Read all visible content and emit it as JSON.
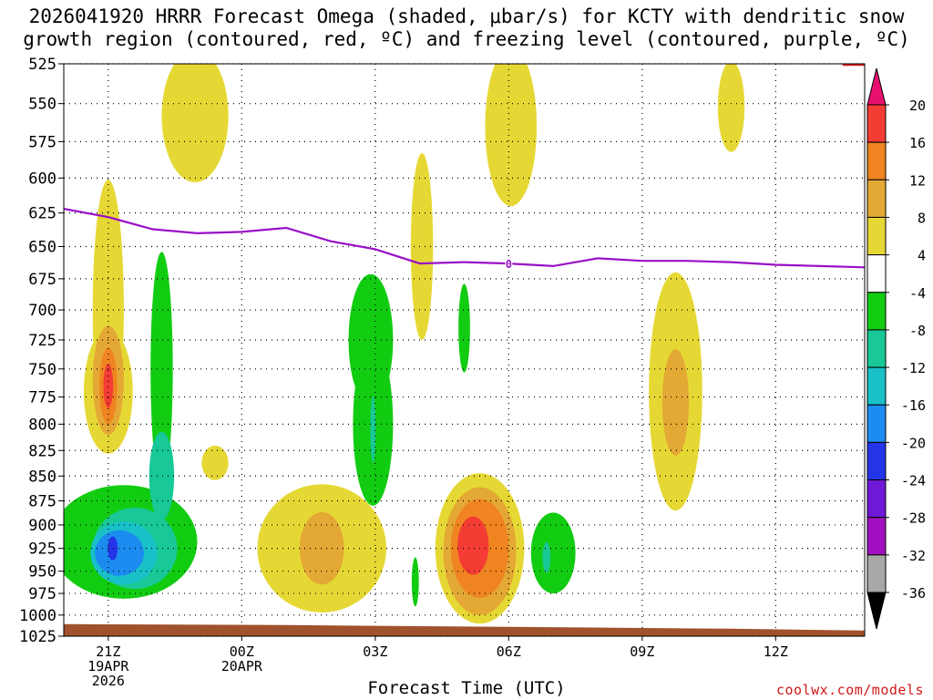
{
  "chart_data": {
    "type": "heatmap",
    "title": "2026041920 HRRR Forecast Omega (shaded, μbar/s) for KCTY with dendritic snow growth region (contoured, red, ºC) and freezing level (contoured, purple, ºC)",
    "xlabel": "Forecast Time (UTC)",
    "ylabel": "",
    "y_axis": {
      "type": "pressure (mb)",
      "ticks": [
        525,
        550,
        575,
        600,
        625,
        650,
        675,
        700,
        725,
        750,
        775,
        800,
        825,
        850,
        875,
        900,
        925,
        950,
        975,
        1000,
        1025
      ],
      "ylim": [
        525,
        1025
      ]
    },
    "x_axis": {
      "range_hours": [
        -1.0,
        17.0
      ],
      "ticks": [
        {
          "hour": 0,
          "lines": [
            "21Z",
            "19APR",
            "2026"
          ]
        },
        {
          "hour": 3,
          "lines": [
            "00Z",
            "20APR"
          ]
        },
        {
          "hour": 6,
          "lines": [
            "03Z"
          ]
        },
        {
          "hour": 9,
          "lines": [
            "06Z"
          ]
        },
        {
          "hour": 12,
          "lines": [
            "09Z"
          ]
        },
        {
          "hour": 15,
          "lines": [
            "12Z"
          ]
        }
      ]
    },
    "colorbar": {
      "labels": [
        20,
        16,
        12,
        8,
        4,
        -4,
        -8,
        -12,
        -16,
        -20,
        -24,
        -28,
        -32,
        -36
      ],
      "bins": [
        {
          "min": 20,
          "max": null,
          "color": "#e8106e"
        },
        {
          "min": 16,
          "max": 20,
          "color": "#f43c34"
        },
        {
          "min": 12,
          "max": 16,
          "color": "#f08420"
        },
        {
          "min": 8,
          "max": 12,
          "color": "#e4a834"
        },
        {
          "min": 4,
          "max": 8,
          "color": "#e6d834"
        },
        {
          "min": -4,
          "max": 4,
          "color": "#ffffff"
        },
        {
          "min": -8,
          "max": -4,
          "color": "#12cc12"
        },
        {
          "min": -12,
          "max": -8,
          "color": "#18c896"
        },
        {
          "min": -16,
          "max": -12,
          "color": "#18c0c8"
        },
        {
          "min": -20,
          "max": -16,
          "color": "#1c8cf0"
        },
        {
          "min": -24,
          "max": -20,
          "color": "#2434e8"
        },
        {
          "min": -28,
          "max": -24,
          "color": "#7018d8"
        },
        {
          "min": -32,
          "max": -28,
          "color": "#a010c0"
        },
        {
          "min": -36,
          "max": -32,
          "color": "#a8a8a8"
        },
        {
          "min": null,
          "max": -36,
          "color": "#000000"
        }
      ]
    },
    "freezing_level": {
      "label": "0",
      "color": "#9a10c8",
      "points": [
        [
          -1.0,
          622
        ],
        [
          0.0,
          628
        ],
        [
          1.0,
          637
        ],
        [
          2.0,
          640
        ],
        [
          3.0,
          639
        ],
        [
          4.0,
          636
        ],
        [
          5.0,
          646
        ],
        [
          6.0,
          652
        ],
        [
          7.0,
          663
        ],
        [
          8.0,
          662
        ],
        [
          9.0,
          663
        ],
        [
          10.0,
          665
        ],
        [
          11.0,
          659
        ],
        [
          12.0,
          661
        ],
        [
          13.0,
          661
        ],
        [
          14.0,
          662
        ],
        [
          15.0,
          664
        ],
        [
          16.0,
          665
        ],
        [
          17.0,
          666
        ]
      ]
    },
    "snow_growth_region": {
      "color": "#e01818",
      "points": [
        [
          16.5,
          524
        ],
        [
          17.0,
          524
        ]
      ]
    },
    "terrain": {
      "color": "#a0522d",
      "surface_pressure_mb": 1015
    },
    "omega_features": [
      {
        "value": 4,
        "center": [
          0.0,
          700
        ],
        "rx": 0.35,
        "ry": 115
      },
      {
        "value": 4,
        "center": [
          0.0,
          770
        ],
        "rx": 0.55,
        "ry": 58
      },
      {
        "value": 8,
        "center": [
          0.0,
          760
        ],
        "rx": 0.35,
        "ry": 50
      },
      {
        "value": 12,
        "center": [
          0.0,
          765
        ],
        "rx": 0.2,
        "ry": 35
      },
      {
        "value": 16,
        "center": [
          0.0,
          765
        ],
        "rx": 0.11,
        "ry": 20
      },
      {
        "value": 4,
        "center": [
          1.95,
          558
        ],
        "rx": 0.75,
        "ry": 45
      },
      {
        "value": 4,
        "center": [
          2.4,
          837
        ],
        "rx": 0.3,
        "ry": 17
      },
      {
        "value": -4,
        "center": [
          1.0,
          920
        ],
        "rx": 0.3,
        "ry": 42
      },
      {
        "value": -4,
        "center": [
          0.35,
          918
        ],
        "rx": 1.65,
        "ry": 63
      },
      {
        "value": -4,
        "center": [
          1.2,
          750
        ],
        "rx": 0.25,
        "ry": 110
      },
      {
        "value": -8,
        "center": [
          0.6,
          925
        ],
        "rx": 0.95,
        "ry": 45
      },
      {
        "value": -8,
        "center": [
          1.2,
          850
        ],
        "rx": 0.28,
        "ry": 45
      },
      {
        "value": -12,
        "center": [
          0.35,
          930
        ],
        "rx": 0.75,
        "ry": 35
      },
      {
        "value": -16,
        "center": [
          0.25,
          930
        ],
        "rx": 0.55,
        "ry": 25
      },
      {
        "value": -20,
        "center": [
          0.1,
          925
        ],
        "rx": 0.11,
        "ry": 13
      },
      {
        "value": -4,
        "center": [
          5.9,
          725
        ],
        "rx": 0.5,
        "ry": 58
      },
      {
        "value": -4,
        "center": [
          5.95,
          800
        ],
        "rx": 0.45,
        "ry": 80
      },
      {
        "value": -8,
        "center": [
          5.95,
          805
        ],
        "rx": 0.06,
        "ry": 32
      },
      {
        "value": 4,
        "center": [
          4.8,
          925
        ],
        "rx": 1.45,
        "ry": 72
      },
      {
        "value": 8,
        "center": [
          4.8,
          925
        ],
        "rx": 0.5,
        "ry": 40
      },
      {
        "value": 4,
        "center": [
          7.05,
          650
        ],
        "rx": 0.25,
        "ry": 75
      },
      {
        "value": -4,
        "center": [
          6.9,
          962
        ],
        "rx": 0.08,
        "ry": 28
      },
      {
        "value": 4,
        "center": [
          8.35,
          925
        ],
        "rx": 1.0,
        "ry": 85
      },
      {
        "value": 8,
        "center": [
          8.35,
          928
        ],
        "rx": 0.82,
        "ry": 72
      },
      {
        "value": 12,
        "center": [
          8.35,
          925
        ],
        "rx": 0.65,
        "ry": 55
      },
      {
        "value": 16,
        "center": [
          8.2,
          922
        ],
        "rx": 0.35,
        "ry": 32
      },
      {
        "value": -4,
        "center": [
          8.0,
          715
        ],
        "rx": 0.13,
        "ry": 38
      },
      {
        "value": 4,
        "center": [
          9.05,
          565
        ],
        "rx": 0.58,
        "ry": 55
      },
      {
        "value": -4,
        "center": [
          10.0,
          930
        ],
        "rx": 0.5,
        "ry": 45
      },
      {
        "value": -8,
        "center": [
          9.85,
          935
        ],
        "rx": 0.09,
        "ry": 17
      },
      {
        "value": 4,
        "center": [
          12.75,
          770
        ],
        "rx": 0.6,
        "ry": 115
      },
      {
        "value": 8,
        "center": [
          12.75,
          780
        ],
        "rx": 0.3,
        "ry": 50
      },
      {
        "value": 4,
        "center": [
          14.0,
          552
        ],
        "rx": 0.3,
        "ry": 30
      }
    ]
  },
  "watermark": "coolwx.com/models"
}
